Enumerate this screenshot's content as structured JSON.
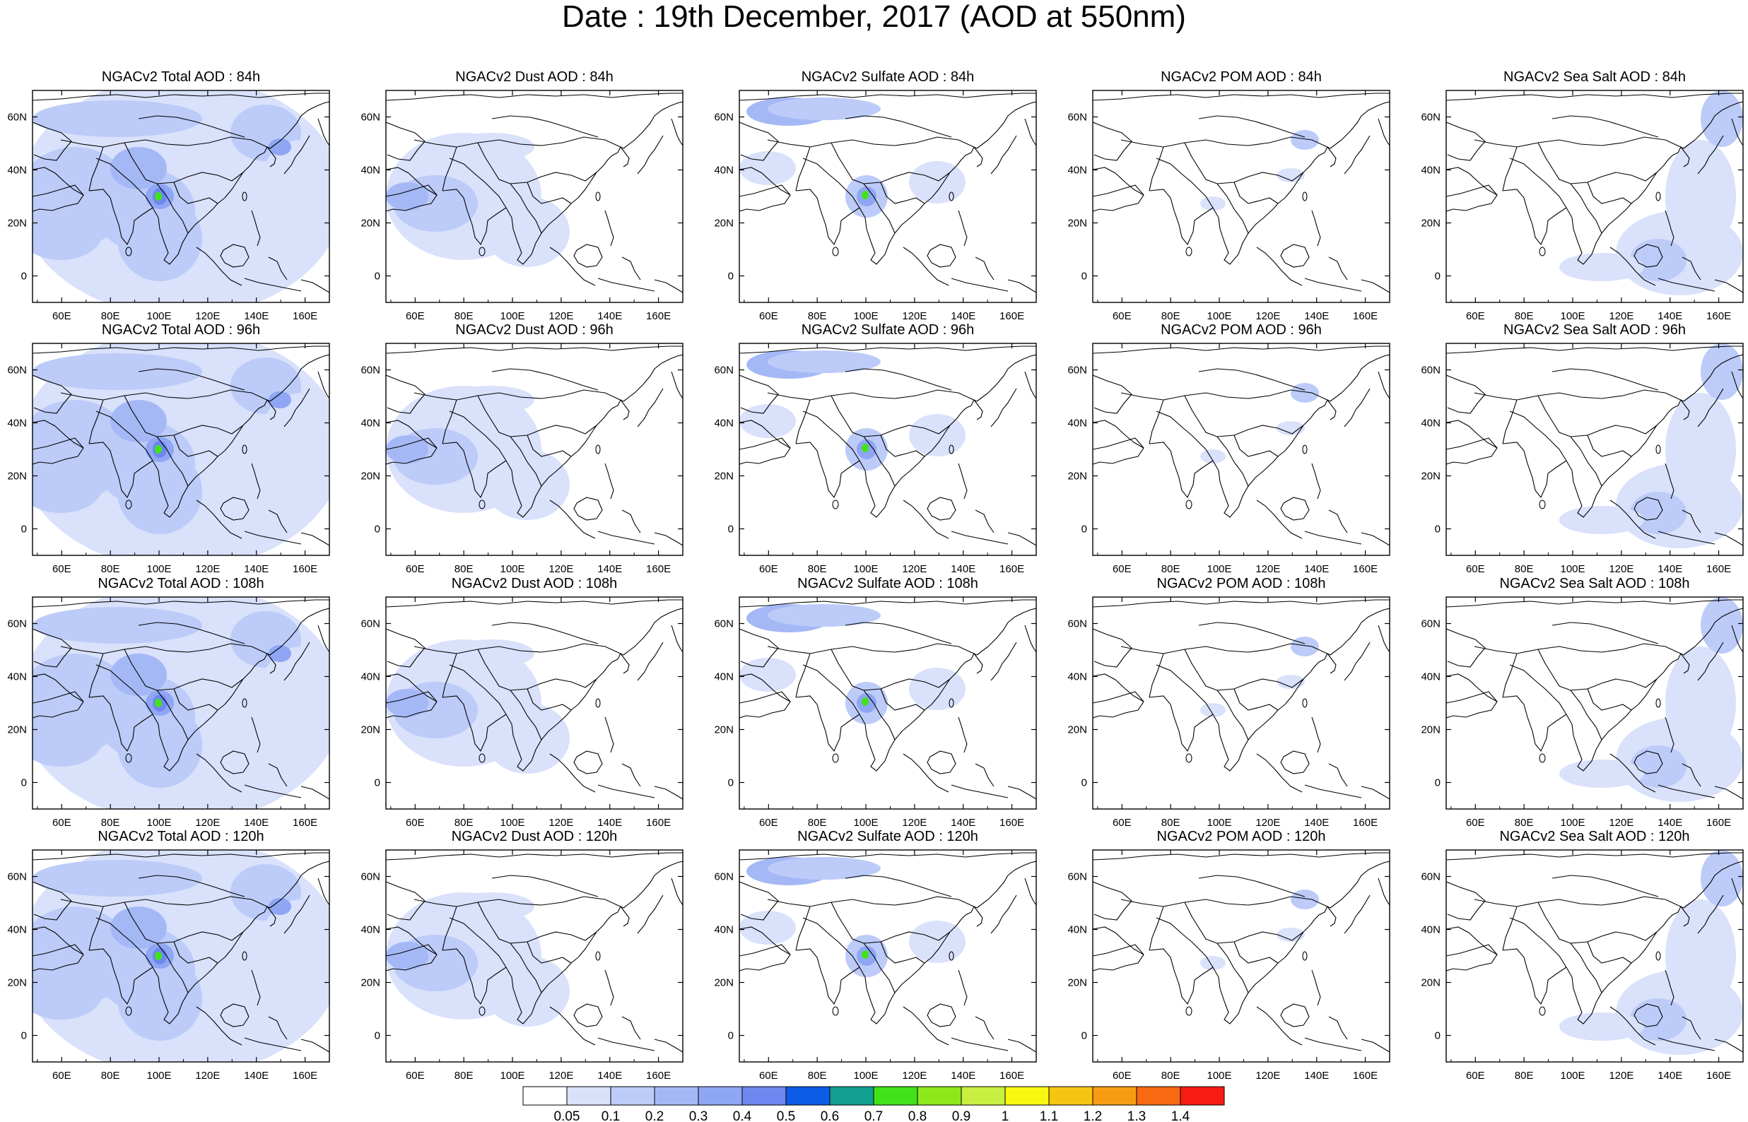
{
  "title": "Date : 19th December, 2017 (AOD at 550nm)",
  "chart_data": {
    "type": "map-panel-grid",
    "rows": [
      "84h",
      "96h",
      "108h",
      "120h"
    ],
    "columns": [
      "Total",
      "Dust",
      "Sulfate",
      "POM",
      "Sea Salt"
    ],
    "panels": [
      [
        "NGACv2 Total AOD : 84h",
        "NGACv2 Dust AOD : 84h",
        "NGACv2 Sulfate AOD : 84h",
        "NGACv2 POM AOD : 84h",
        "NGACv2 Sea Salt AOD : 84h"
      ],
      [
        "NGACv2 Total AOD : 96h",
        "NGACv2 Dust AOD : 96h",
        "NGACv2 Sulfate AOD : 96h",
        "NGACv2 POM AOD : 96h",
        "NGACv2 Sea Salt AOD : 96h"
      ],
      [
        "NGACv2 Total AOD : 108h",
        "NGACv2 Dust AOD : 108h",
        "NGACv2 Sulfate AOD : 108h",
        "NGACv2 POM AOD : 108h",
        "NGACv2 Sea Salt AOD : 108h"
      ],
      [
        "NGACv2 Total AOD : 120h",
        "NGACv2 Dust AOD : 120h",
        "NGACv2 Sulfate AOD : 120h",
        "NGACv2 POM AOD : 120h",
        "NGACv2 Sea Salt  AOD : 120h"
      ]
    ],
    "lon_range": [
      48,
      170
    ],
    "lat_range": [
      -10,
      70
    ],
    "x_ticks": [
      60,
      80,
      100,
      120,
      140,
      160
    ],
    "x_tick_labels": [
      "60E",
      "80E",
      "100E",
      "120E",
      "140E",
      "160E"
    ],
    "y_ticks": [
      0,
      20,
      40,
      60
    ],
    "y_tick_labels": [
      "0",
      "20N",
      "40N",
      "60N"
    ],
    "colorbar": {
      "colors": [
        "#ffffff",
        "#d9e1fb",
        "#bccbf8",
        "#a5b8f6",
        "#8ea6f3",
        "#6f86f0",
        "#0c5ce8",
        "#11a090",
        "#42e21a",
        "#8ee81b",
        "#c8ef41",
        "#f7f712",
        "#f7c412",
        "#f79c12",
        "#f76a12",
        "#f71c12"
      ],
      "labels": [
        "0.05",
        "0.1",
        "0.2",
        "0.3",
        "0.4",
        "0.5",
        "0.6",
        "0.7",
        "0.8",
        "0.9",
        "1",
        "1.1",
        "1.2",
        "1.3",
        "1.4"
      ]
    }
  }
}
